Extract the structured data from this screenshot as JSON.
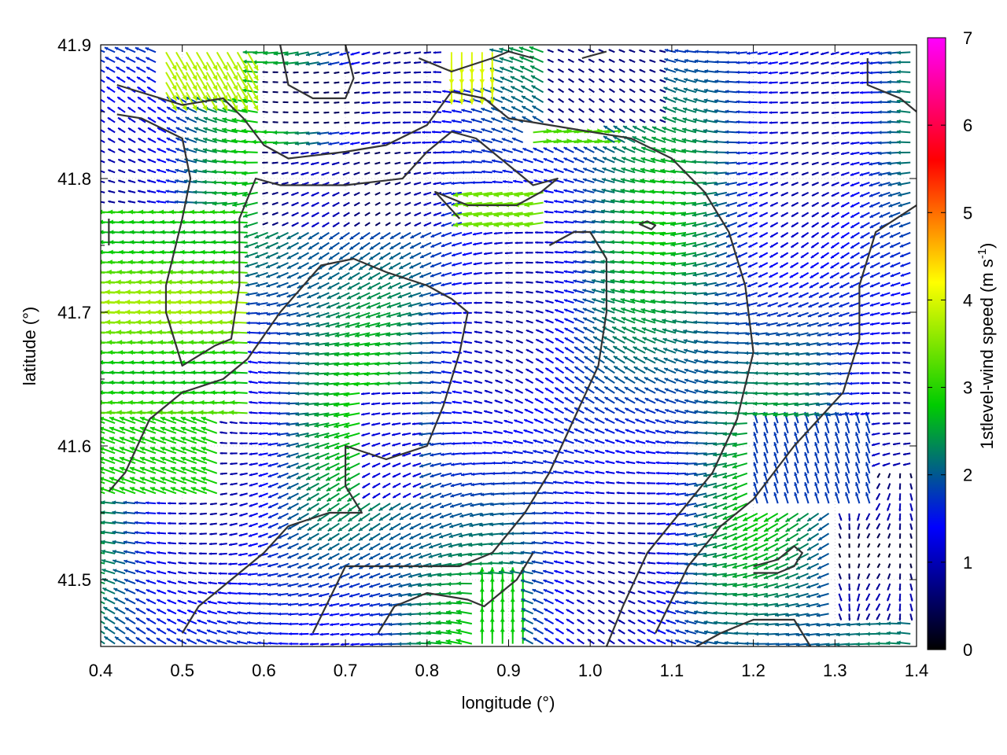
{
  "chart_data": {
    "type": "vector-field",
    "xlabel": "longitude (°)",
    "ylabel": "latitude (°)",
    "xlim": [
      0.4,
      1.4
    ],
    "ylim": [
      41.45,
      41.9
    ],
    "x_ticks": [
      "0.4",
      "0.5",
      "0.6",
      "0.7",
      "0.8",
      "0.9",
      "1.0",
      "1.1",
      "1.2",
      "1.3",
      "1.4"
    ],
    "y_ticks": [
      "41.5",
      "41.6",
      "41.7",
      "41.8",
      "41.9"
    ],
    "colorbar": {
      "label_main": "1stlevel-wind speed (m s",
      "label_sup": "-1",
      "label_close": ")",
      "range": [
        0,
        7
      ],
      "ticks": [
        "0",
        "1",
        "2",
        "3",
        "4",
        "5",
        "6",
        "7"
      ],
      "colormap": [
        "#000000",
        "#0000ff",
        "#00cc00",
        "#ffff00",
        "#ff0000",
        "#ff00ff"
      ]
    },
    "contour_color": "#333333",
    "contours": [
      [
        [
          0.42,
          41.87
        ],
        [
          0.5,
          41.855
        ],
        [
          0.55,
          41.86
        ],
        [
          0.575,
          41.845
        ],
        [
          0.6,
          41.825
        ],
        [
          0.63,
          41.815
        ],
        [
          0.7,
          41.82
        ],
        [
          0.75,
          41.825
        ],
        [
          0.8,
          41.84
        ],
        [
          0.83,
          41.865
        ],
        [
          0.87,
          41.86
        ],
        [
          0.9,
          41.845
        ],
        [
          0.95,
          41.84
        ],
        [
          1.05,
          41.83
        ],
        [
          1.1,
          41.815
        ],
        [
          1.14,
          41.79
        ],
        [
          1.17,
          41.76
        ],
        [
          1.19,
          41.72
        ],
        [
          1.2,
          41.67
        ],
        [
          1.18,
          41.62
        ],
        [
          1.15,
          41.58
        ],
        [
          1.11,
          41.55
        ],
        [
          1.07,
          41.52
        ],
        [
          1.04,
          41.48
        ],
        [
          1.02,
          41.45
        ]
      ],
      [
        [
          0.42,
          41.848
        ],
        [
          0.45,
          41.845
        ],
        [
          0.5,
          41.83
        ],
        [
          0.51,
          41.8
        ],
        [
          0.5,
          41.77
        ],
        [
          0.48,
          41.72
        ],
        [
          0.48,
          41.7
        ],
        [
          0.5,
          41.66
        ],
        [
          0.54,
          41.675
        ],
        [
          0.56,
          41.68
        ],
        [
          0.57,
          41.72
        ],
        [
          0.57,
          41.77
        ],
        [
          0.59,
          41.8
        ],
        [
          0.62,
          41.795
        ],
        [
          0.7,
          41.795
        ],
        [
          0.77,
          41.8
        ],
        [
          0.8,
          41.82
        ],
        [
          0.83,
          41.835
        ],
        [
          0.86,
          41.83
        ],
        [
          0.9,
          41.81
        ],
        [
          0.93,
          41.795
        ],
        [
          0.96,
          41.8
        ],
        [
          0.94,
          41.79
        ],
        [
          0.91,
          41.78
        ],
        [
          0.85,
          41.78
        ],
        [
          0.81,
          41.79
        ],
        [
          0.84,
          41.77
        ]
      ],
      [
        [
          0.41,
          41.566
        ],
        [
          0.43,
          41.58
        ],
        [
          0.46,
          41.62
        ],
        [
          0.5,
          41.64
        ],
        [
          0.55,
          41.65
        ],
        [
          0.58,
          41.665
        ],
        [
          0.62,
          41.7
        ],
        [
          0.67,
          41.735
        ],
        [
          0.71,
          41.74
        ],
        [
          0.75,
          41.73
        ],
        [
          0.8,
          41.72
        ],
        [
          0.83,
          41.71
        ],
        [
          0.85,
          41.7
        ],
        [
          0.84,
          41.67
        ],
        [
          0.82,
          41.63
        ],
        [
          0.8,
          41.6
        ],
        [
          0.75,
          41.59
        ],
        [
          0.7,
          41.6
        ],
        [
          0.7,
          41.57
        ],
        [
          0.72,
          41.55
        ],
        [
          0.68,
          41.55
        ],
        [
          0.63,
          41.54
        ],
        [
          0.6,
          41.52
        ],
        [
          0.56,
          41.5
        ],
        [
          0.52,
          41.48
        ],
        [
          0.5,
          41.46
        ]
      ],
      [
        [
          0.66,
          41.46
        ],
        [
          0.7,
          41.51
        ],
        [
          0.73,
          41.51
        ],
        [
          0.78,
          41.51
        ],
        [
          0.84,
          41.51
        ],
        [
          0.88,
          41.52
        ],
        [
          0.92,
          41.55
        ],
        [
          0.95,
          41.58
        ],
        [
          0.98,
          41.62
        ],
        [
          1.01,
          41.66
        ],
        [
          1.02,
          41.7
        ],
        [
          1.02,
          41.74
        ],
        [
          1.0,
          41.76
        ],
        [
          0.98,
          41.76
        ],
        [
          0.95,
          41.75
        ]
      ],
      [
        [
          0.74,
          41.46
        ],
        [
          0.76,
          41.48
        ],
        [
          0.8,
          41.49
        ],
        [
          0.85,
          41.485
        ],
        [
          0.87,
          41.48
        ],
        [
          0.91,
          41.5
        ],
        [
          0.93,
          41.52
        ]
      ],
      [
        [
          1.06,
          41.766
        ],
        [
          1.075,
          41.762
        ],
        [
          1.08,
          41.765
        ],
        [
          1.07,
          41.768
        ],
        [
          1.06,
          41.766
        ]
      ],
      [
        [
          0.79,
          41.89
        ],
        [
          0.83,
          41.88
        ],
        [
          0.88,
          41.89
        ],
        [
          0.9,
          41.895
        ],
        [
          0.93,
          41.89
        ]
      ],
      [
        [
          0.62,
          41.9
        ],
        [
          0.63,
          41.87
        ],
        [
          0.66,
          41.86
        ],
        [
          0.7,
          41.86
        ],
        [
          0.71,
          41.875
        ],
        [
          0.7,
          41.9
        ]
      ],
      [
        [
          1.13,
          41.45
        ],
        [
          1.16,
          41.46
        ],
        [
          1.2,
          41.47
        ],
        [
          1.24,
          41.47
        ],
        [
          1.25,
          41.47
        ],
        [
          1.27,
          41.45
        ]
      ],
      [
        [
          1.2,
          41.505
        ],
        [
          1.23,
          41.505
        ],
        [
          1.25,
          41.51
        ],
        [
          1.26,
          41.52
        ],
        [
          1.25,
          41.525
        ],
        [
          1.23,
          41.515
        ],
        [
          1.2,
          41.51
        ]
      ],
      [
        [
          1.34,
          41.89
        ],
        [
          1.34,
          41.87
        ],
        [
          1.38,
          41.86
        ],
        [
          1.4,
          41.85
        ]
      ],
      [
        [
          1.4,
          41.78
        ],
        [
          1.35,
          41.76
        ],
        [
          1.33,
          41.72
        ],
        [
          1.33,
          41.68
        ],
        [
          1.31,
          41.64
        ],
        [
          1.28,
          41.62
        ],
        [
          1.25,
          41.6
        ],
        [
          1.2,
          41.56
        ],
        [
          1.16,
          41.54
        ],
        [
          1.12,
          41.51
        ],
        [
          1.08,
          41.46
        ]
      ],
      [
        [
          0.41,
          41.75
        ],
        [
          0.41,
          41.77
        ]
      ],
      [
        [
          0.99,
          41.89
        ],
        [
          1.02,
          41.895
        ]
      ]
    ]
  }
}
